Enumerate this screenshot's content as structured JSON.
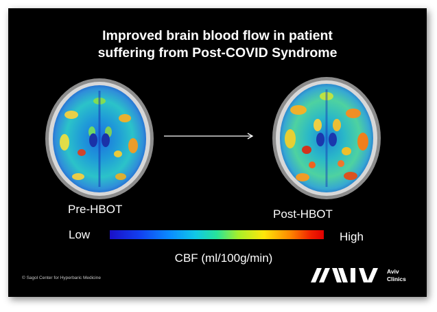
{
  "slide": {
    "title_line1": "Improved brain blood flow in patient",
    "title_line2": "suffering from Post-COVID Syndrome"
  },
  "images": [
    {
      "label": "Pre-HBOT"
    },
    {
      "label": "Post-HBOT"
    }
  ],
  "colorbar": {
    "low_label": "Low",
    "high_label": "High",
    "unit_label": "CBF (ml/100g/min)",
    "colors": [
      "#1a10c8",
      "#0a8cff",
      "#27e39a",
      "#ffe60a",
      "#ff8a00",
      "#e00000"
    ]
  },
  "footer": {
    "copyright": "© Sagol Center for Hyperbaric Medicine",
    "logo_line1": "Aviv",
    "logo_line2": "Clinics"
  }
}
